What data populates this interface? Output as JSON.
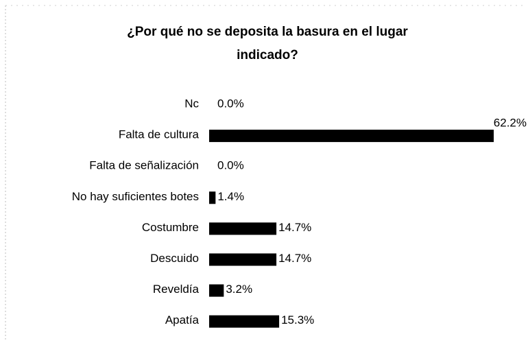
{
  "chart_data": {
    "type": "bar",
    "orientation": "horizontal",
    "title": "¿Por qué no se deposita la basura en el lugar indicado?",
    "categories": [
      "Nc",
      "Falta de cultura",
      "Falta de señalización",
      "No hay suficientes botes",
      "Costumbre",
      "Descuido",
      "Reveldía",
      "Apatía"
    ],
    "values": [
      0,
      62.2,
      0,
      1.4,
      14.7,
      14.7,
      3.2,
      15.3
    ],
    "value_labels": [
      "0.0%",
      "62.2%",
      "0.0%",
      "1.4%",
      "14.7%",
      "14.7%",
      "3.2%",
      "15.3%"
    ],
    "color": "#000000"
  }
}
